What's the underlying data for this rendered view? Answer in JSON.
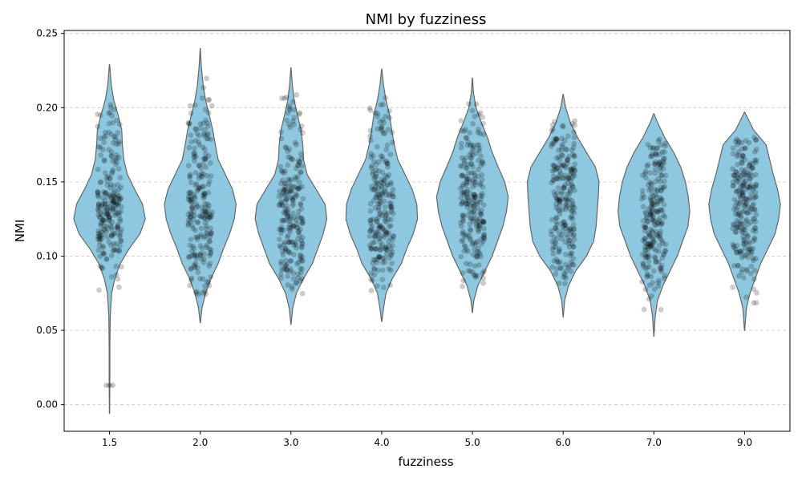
{
  "chart_data": {
    "type": "violin",
    "title": "NMI by fuzziness",
    "xlabel": "fuzziness",
    "ylabel": "NMI",
    "ylim": [
      -0.018,
      0.252
    ],
    "yticks": [
      "0.00",
      "0.05",
      "0.10",
      "0.15",
      "0.20",
      "0.25"
    ],
    "grid": "horizontal-dashed",
    "colors": {
      "violin_fill": "#8ec8e0",
      "violin_edge": "#666666",
      "points": "#000000",
      "grid": "#cccccc"
    },
    "categories": [
      "1.5",
      "2.0",
      "3.0",
      "4.0",
      "5.0",
      "6.0",
      "7.0",
      "9.0"
    ],
    "series": [
      {
        "category": "1.5",
        "min": -0.006,
        "max": 0.229,
        "profile": [
          [
            -0.006,
            0.003
          ],
          [
            0.0,
            0.006
          ],
          [
            0.02,
            0.01
          ],
          [
            0.04,
            0.01
          ],
          [
            0.06,
            0.02
          ],
          [
            0.075,
            0.06
          ],
          [
            0.085,
            0.15
          ],
          [
            0.095,
            0.3
          ],
          [
            0.105,
            0.55
          ],
          [
            0.115,
            0.85
          ],
          [
            0.125,
            1.0
          ],
          [
            0.135,
            0.92
          ],
          [
            0.145,
            0.7
          ],
          [
            0.155,
            0.5
          ],
          [
            0.165,
            0.4
          ],
          [
            0.175,
            0.36
          ],
          [
            0.185,
            0.34
          ],
          [
            0.195,
            0.24
          ],
          [
            0.205,
            0.12
          ],
          [
            0.215,
            0.05
          ],
          [
            0.229,
            0.003
          ]
        ],
        "point_range": [
          0.077,
          0.21
        ],
        "outliers": [
          0.013,
          0.013,
          0.013
        ]
      },
      {
        "category": "2.0",
        "min": 0.055,
        "max": 0.24,
        "profile": [
          [
            0.055,
            0.003
          ],
          [
            0.065,
            0.05
          ],
          [
            0.075,
            0.15
          ],
          [
            0.085,
            0.3
          ],
          [
            0.095,
            0.5
          ],
          [
            0.105,
            0.65
          ],
          [
            0.115,
            0.82
          ],
          [
            0.125,
            0.95
          ],
          [
            0.135,
            1.0
          ],
          [
            0.145,
            0.9
          ],
          [
            0.155,
            0.7
          ],
          [
            0.165,
            0.5
          ],
          [
            0.175,
            0.42
          ],
          [
            0.185,
            0.35
          ],
          [
            0.195,
            0.25
          ],
          [
            0.205,
            0.15
          ],
          [
            0.215,
            0.08
          ],
          [
            0.228,
            0.03
          ],
          [
            0.24,
            0.003
          ]
        ],
        "point_range": [
          0.074,
          0.222
        ],
        "outliers": []
      },
      {
        "category": "3.0",
        "min": 0.054,
        "max": 0.227,
        "profile": [
          [
            0.054,
            0.003
          ],
          [
            0.065,
            0.05
          ],
          [
            0.075,
            0.15
          ],
          [
            0.085,
            0.35
          ],
          [
            0.095,
            0.6
          ],
          [
            0.105,
            0.75
          ],
          [
            0.115,
            0.9
          ],
          [
            0.125,
            1.0
          ],
          [
            0.135,
            0.95
          ],
          [
            0.145,
            0.7
          ],
          [
            0.155,
            0.45
          ],
          [
            0.165,
            0.35
          ],
          [
            0.175,
            0.33
          ],
          [
            0.185,
            0.28
          ],
          [
            0.195,
            0.18
          ],
          [
            0.205,
            0.09
          ],
          [
            0.215,
            0.04
          ],
          [
            0.227,
            0.003
          ]
        ],
        "point_range": [
          0.073,
          0.21
        ],
        "outliers": []
      },
      {
        "category": "4.0",
        "min": 0.056,
        "max": 0.226,
        "profile": [
          [
            0.056,
            0.003
          ],
          [
            0.065,
            0.05
          ],
          [
            0.075,
            0.12
          ],
          [
            0.085,
            0.3
          ],
          [
            0.095,
            0.55
          ],
          [
            0.105,
            0.7
          ],
          [
            0.115,
            0.88
          ],
          [
            0.125,
            1.0
          ],
          [
            0.135,
            0.98
          ],
          [
            0.145,
            0.85
          ],
          [
            0.155,
            0.65
          ],
          [
            0.165,
            0.45
          ],
          [
            0.175,
            0.35
          ],
          [
            0.185,
            0.28
          ],
          [
            0.195,
            0.22
          ],
          [
            0.205,
            0.12
          ],
          [
            0.215,
            0.05
          ],
          [
            0.226,
            0.003
          ]
        ],
        "point_range": [
          0.074,
          0.209
        ],
        "outliers": []
      },
      {
        "category": "5.0",
        "min": 0.062,
        "max": 0.22,
        "profile": [
          [
            0.062,
            0.003
          ],
          [
            0.07,
            0.04
          ],
          [
            0.08,
            0.15
          ],
          [
            0.09,
            0.35
          ],
          [
            0.1,
            0.55
          ],
          [
            0.11,
            0.7
          ],
          [
            0.12,
            0.85
          ],
          [
            0.13,
            0.95
          ],
          [
            0.14,
            1.0
          ],
          [
            0.15,
            0.9
          ],
          [
            0.16,
            0.72
          ],
          [
            0.17,
            0.55
          ],
          [
            0.18,
            0.42
          ],
          [
            0.19,
            0.25
          ],
          [
            0.2,
            0.1
          ],
          [
            0.21,
            0.03
          ],
          [
            0.22,
            0.003
          ]
        ],
        "point_range": [
          0.079,
          0.203
        ],
        "outliers": []
      },
      {
        "category": "6.0",
        "min": 0.059,
        "max": 0.209,
        "profile": [
          [
            0.059,
            0.003
          ],
          [
            0.07,
            0.04
          ],
          [
            0.08,
            0.15
          ],
          [
            0.09,
            0.35
          ],
          [
            0.1,
            0.65
          ],
          [
            0.11,
            0.85
          ],
          [
            0.12,
            0.92
          ],
          [
            0.13,
            0.95
          ],
          [
            0.14,
            0.98
          ],
          [
            0.15,
            1.0
          ],
          [
            0.16,
            0.9
          ],
          [
            0.17,
            0.65
          ],
          [
            0.18,
            0.4
          ],
          [
            0.19,
            0.2
          ],
          [
            0.2,
            0.07
          ],
          [
            0.209,
            0.003
          ]
        ],
        "point_range": [
          0.08,
          0.193
        ],
        "outliers": []
      },
      {
        "category": "7.0",
        "min": 0.046,
        "max": 0.196,
        "profile": [
          [
            0.046,
            0.003
          ],
          [
            0.06,
            0.04
          ],
          [
            0.07,
            0.1
          ],
          [
            0.08,
            0.25
          ],
          [
            0.09,
            0.45
          ],
          [
            0.1,
            0.65
          ],
          [
            0.11,
            0.8
          ],
          [
            0.12,
            0.95
          ],
          [
            0.13,
            1.0
          ],
          [
            0.14,
            0.96
          ],
          [
            0.15,
            0.88
          ],
          [
            0.16,
            0.75
          ],
          [
            0.17,
            0.55
          ],
          [
            0.18,
            0.3
          ],
          [
            0.19,
            0.1
          ],
          [
            0.196,
            0.003
          ]
        ],
        "point_range": [
          0.062,
          0.18
        ],
        "outliers": []
      },
      {
        "category": "9.0",
        "min": 0.05,
        "max": 0.197,
        "profile": [
          [
            0.05,
            0.003
          ],
          [
            0.065,
            0.05
          ],
          [
            0.075,
            0.15
          ],
          [
            0.085,
            0.3
          ],
          [
            0.095,
            0.45
          ],
          [
            0.105,
            0.65
          ],
          [
            0.115,
            0.85
          ],
          [
            0.125,
            0.95
          ],
          [
            0.135,
            1.0
          ],
          [
            0.145,
            0.92
          ],
          [
            0.155,
            0.8
          ],
          [
            0.165,
            0.7
          ],
          [
            0.175,
            0.6
          ],
          [
            0.185,
            0.25
          ],
          [
            0.197,
            0.003
          ]
        ],
        "point_range": [
          0.065,
          0.18
        ],
        "outliers": []
      }
    ]
  }
}
